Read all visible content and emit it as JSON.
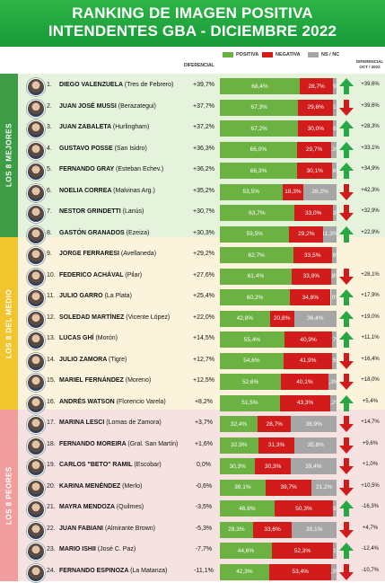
{
  "header": {
    "title_line1": "RANKING DE IMAGEN POSITIVA",
    "title_line2": "INTENDENTES GBA - DICIEMBRE 2022"
  },
  "column_labels": {
    "diferencial": "DIFERENCIAL",
    "positive": "POSITIVA",
    "negative": "NEGATIVA",
    "nsnc": "NS / NC",
    "diferencial_oct_line1": "DIFERENCIAL",
    "diferencial_oct_line2": "OCT / 2022"
  },
  "groups": [
    {
      "label": "LOS 8 MEJORES"
    },
    {
      "label": "LOS 8 DEL MEDIO"
    },
    {
      "label": "LOS 8 PEORES"
    }
  ],
  "colors": {
    "header_green": "#22a83f",
    "positive": "#6cb243",
    "negative": "#d21b1b",
    "nsnc": "#a6a6a6",
    "band_best": "#e6f3dc",
    "band_mid": "#fbf3dc",
    "band_worst": "#f7e2e2",
    "side_best": "#3e9b46",
    "side_mid": "#f0c52e",
    "side_worst": "#ef9d9d",
    "arrow_up": "#28a745",
    "arrow_down": "#d11a1a"
  },
  "chart_data": {
    "type": "bar",
    "title": "RANKING DE IMAGEN POSITIVA INTENDENTES GBA - DICIEMBRE 2022",
    "series_names": [
      "POSITIVA",
      "NEGATIVA",
      "NS / NC"
    ],
    "rows": [
      {
        "rank": "1.",
        "name": "DIEGO VALENZUELA",
        "muni": "(Tres de Febrero)",
        "dif": "+39,7%",
        "pos": 68.4,
        "neg": 28.7,
        "ns": 2.9,
        "pos_label": "68,4%",
        "neg_label": "28,7%",
        "ns_label": "2,9%",
        "trend": "up",
        "dif_oct": "+39,6%"
      },
      {
        "rank": "2.",
        "name": "JUAN JOSÉ MUSSI",
        "muni": "(Berazategui)",
        "dif": "+37,7%",
        "pos": 67.3,
        "neg": 29.6,
        "ns": 3.1,
        "pos_label": "67,3%",
        "neg_label": "29,6%",
        "ns_label": "3,1%",
        "trend": "down",
        "dif_oct": "+39,6%"
      },
      {
        "rank": "3.",
        "name": "JUAN ZABALETA",
        "muni": "(Hurlingham)",
        "dif": "+37,2%",
        "pos": 67.2,
        "neg": 30.0,
        "ns": 2.8,
        "pos_label": "67,2%",
        "neg_label": "30,0%",
        "ns_label": "2,8%",
        "trend": "up",
        "dif_oct": "+28,3%"
      },
      {
        "rank": "4.",
        "name": "GUSTAVO POSSE",
        "muni": "(San Isidro)",
        "dif": "+36,3%",
        "pos": 66.0,
        "neg": 29.7,
        "ns": 4.3,
        "pos_label": "66,0%",
        "neg_label": "29,7%",
        "ns_label": "4,3%",
        "trend": "up",
        "dif_oct": "+33,1%"
      },
      {
        "rank": "5.",
        "name": "FERNANDO GRAY",
        "muni": "(Esteban Echev.)",
        "dif": "+36,2%",
        "pos": 66.3,
        "neg": 30.1,
        "ns": 3.6,
        "pos_label": "66,3%",
        "neg_label": "30,1%",
        "ns_label": "3,6%",
        "trend": "up",
        "dif_oct": "+34,9%"
      },
      {
        "rank": "6.",
        "name": "NOELIA CORREA",
        "muni": "(Malvinas Arg.)",
        "dif": "+35,2%",
        "pos": 53.5,
        "neg": 18.3,
        "ns": 28.2,
        "pos_label": "53,5%",
        "neg_label": "18,3%",
        "ns_label": "28,2%",
        "trend": "down",
        "dif_oct": "+42,3%"
      },
      {
        "rank": "7.",
        "name": "NESTOR GRINDETTI",
        "muni": "(Lanús)",
        "dif": "+30,7%",
        "pos": 63.7,
        "neg": 33.0,
        "ns": 3.3,
        "pos_label": "63,7%",
        "neg_label": "33,0%",
        "ns_label": "3,3%",
        "trend": "down",
        "dif_oct": "+32,9%"
      },
      {
        "rank": "8.",
        "name": "GASTÓN GRANADOS",
        "muni": "(Ezeiza)",
        "dif": "+30,3%",
        "pos": 59.5,
        "neg": 29.2,
        "ns": 11.3,
        "pos_label": "59,5%",
        "neg_label": "29,2%",
        "ns_label": "11,3%",
        "trend": "up",
        "dif_oct": "+22,9%"
      },
      {
        "rank": "9.",
        "name": "JORGE FERRARESI",
        "muni": "(Avellaneda)",
        "dif": "+29,2%",
        "pos": 62.7,
        "neg": 33.5,
        "ns": 3.8,
        "pos_label": "62,7%",
        "neg_label": "33,5%",
        "ns_label": "3,8%",
        "trend": "none",
        "dif_oct": ""
      },
      {
        "rank": "10.",
        "name": "FEDERICO ACHÁVAL",
        "muni": "(Pilar)",
        "dif": "+27,6%",
        "pos": 61.4,
        "neg": 33.8,
        "ns": 4.8,
        "pos_label": "61,4%",
        "neg_label": "33,8%",
        "ns_label": "4,8%",
        "trend": "down",
        "dif_oct": "+28,1%"
      },
      {
        "rank": "11.",
        "name": "JULIO GARRO",
        "muni": "(La Plata)",
        "dif": "+25,4%",
        "pos": 60.2,
        "neg": 34.8,
        "ns": 5.0,
        "pos_label": "60,2%",
        "neg_label": "34,8%",
        "ns_label": "5,0%",
        "trend": "up",
        "dif_oct": "+17,9%"
      },
      {
        "rank": "12.",
        "name": "SOLEDAD MARTÍNEZ",
        "muni": "(Vicente López)",
        "dif": "+22,0%",
        "pos": 42.8,
        "neg": 20.8,
        "ns": 36.4,
        "pos_label": "42,8%",
        "neg_label": "20,8%",
        "ns_label": "36,4%",
        "trend": "up",
        "dif_oct": "+19,0%"
      },
      {
        "rank": "13.",
        "name": "LUCAS GHÍ",
        "muni": "(Morón)",
        "dif": "+14,5%",
        "pos": 55.4,
        "neg": 40.9,
        "ns": 3.7,
        "pos_label": "55,4%",
        "neg_label": "40,9%",
        "ns_label": "3,7%",
        "trend": "up",
        "dif_oct": "+11,1%"
      },
      {
        "rank": "14.",
        "name": "JULIO ZAMORA",
        "muni": "(Tigre)",
        "dif": "+12,7%",
        "pos": 54.6,
        "neg": 41.9,
        "ns": 3.5,
        "pos_label": "54,6%",
        "neg_label": "41,9%",
        "ns_label": "3,5%",
        "trend": "down",
        "dif_oct": "+16,4%"
      },
      {
        "rank": "15.",
        "name": "MARIEL FERNÁNDEZ",
        "muni": "(Moreno)",
        "dif": "+12,5%",
        "pos": 52.6,
        "neg": 40.1,
        "ns": 7.3,
        "pos_label": "52,6%",
        "neg_label": "40,1%",
        "ns_label": "7,3%",
        "trend": "down",
        "dif_oct": "+18,0%"
      },
      {
        "rank": "16.",
        "name": "ANDRÉS WATSON",
        "muni": "(Florencio Varela)",
        "dif": "+8,2%",
        "pos": 51.5,
        "neg": 43.3,
        "ns": 5.2,
        "pos_label": "51,5%",
        "neg_label": "43,3%",
        "ns_label": "5,2%",
        "trend": "up",
        "dif_oct": "+5,4%"
      },
      {
        "rank": "17.",
        "name": "MARINA LESCI",
        "muni": "(Lomas de Zamora)",
        "dif": "+3,7%",
        "pos": 32.4,
        "neg": 28.7,
        "ns": 38.9,
        "pos_label": "32,4%",
        "neg_label": "28,7%",
        "ns_label": "38,9%",
        "trend": "down",
        "dif_oct": "+14,7%"
      },
      {
        "rank": "18.",
        "name": "FERNANDO MOREIRA",
        "muni": "(Gral. San Martín)",
        "dif": "+1,6%",
        "pos": 32.9,
        "neg": 31.3,
        "ns": 35.8,
        "pos_label": "32,9%",
        "neg_label": "31,3%",
        "ns_label": "35,8%",
        "trend": "down",
        "dif_oct": "+9,6%"
      },
      {
        "rank": "19.",
        "name": "CARLOS \"BETO\" RAMIL",
        "muni": "(Escobar)",
        "dif": "0,0%",
        "pos": 30.3,
        "neg": 30.3,
        "ns": 39.4,
        "pos_label": "30,3%",
        "neg_label": "30,3%",
        "ns_label": "39,4%",
        "trend": "down",
        "dif_oct": "+1,0%"
      },
      {
        "rank": "20.",
        "name": "KARINA MENÉNDEZ",
        "muni": "(Merlo)",
        "dif": "-0,6%",
        "pos": 39.1,
        "neg": 39.7,
        "ns": 21.2,
        "pos_label": "39,1%",
        "neg_label": "39,7%",
        "ns_label": "21,2%",
        "trend": "down",
        "dif_oct": "+10,5%"
      },
      {
        "rank": "21.",
        "name": "MAYRA MENDOZA",
        "muni": "(Quilmes)",
        "dif": "-3,5%",
        "pos": 46.8,
        "neg": 50.3,
        "ns": 2.9,
        "pos_label": "46,8%",
        "neg_label": "50,3%",
        "ns_label": "2,9%",
        "trend": "up",
        "dif_oct": "-16,3%"
      },
      {
        "rank": "22.",
        "name": "JUAN FABIANI",
        "muni": "(Almirante Brown)",
        "dif": "-5,3%",
        "pos": 28.3,
        "neg": 33.6,
        "ns": 38.1,
        "pos_label": "28,3%",
        "neg_label": "33,6%",
        "ns_label": "38,1%",
        "trend": "down",
        "dif_oct": "+4,7%"
      },
      {
        "rank": "23.",
        "name": "MARIO ISHII",
        "muni": "(José C. Paz)",
        "dif": "-7,7%",
        "pos": 44.6,
        "neg": 52.3,
        "ns": 3.1,
        "pos_label": "44,6%",
        "neg_label": "52,3%",
        "ns_label": "3,1%",
        "trend": "up",
        "dif_oct": "-12,4%"
      },
      {
        "rank": "24.",
        "name": "FERNANDO ESPINOZA",
        "muni": "(La Matanza)",
        "dif": "-11,1%",
        "pos": 42.3,
        "neg": 53.4,
        "ns": 4.3,
        "pos_label": "42,3%",
        "neg_label": "53,4%",
        "ns_label": "4,3%",
        "trend": "down",
        "dif_oct": "-10,7%"
      }
    ]
  }
}
